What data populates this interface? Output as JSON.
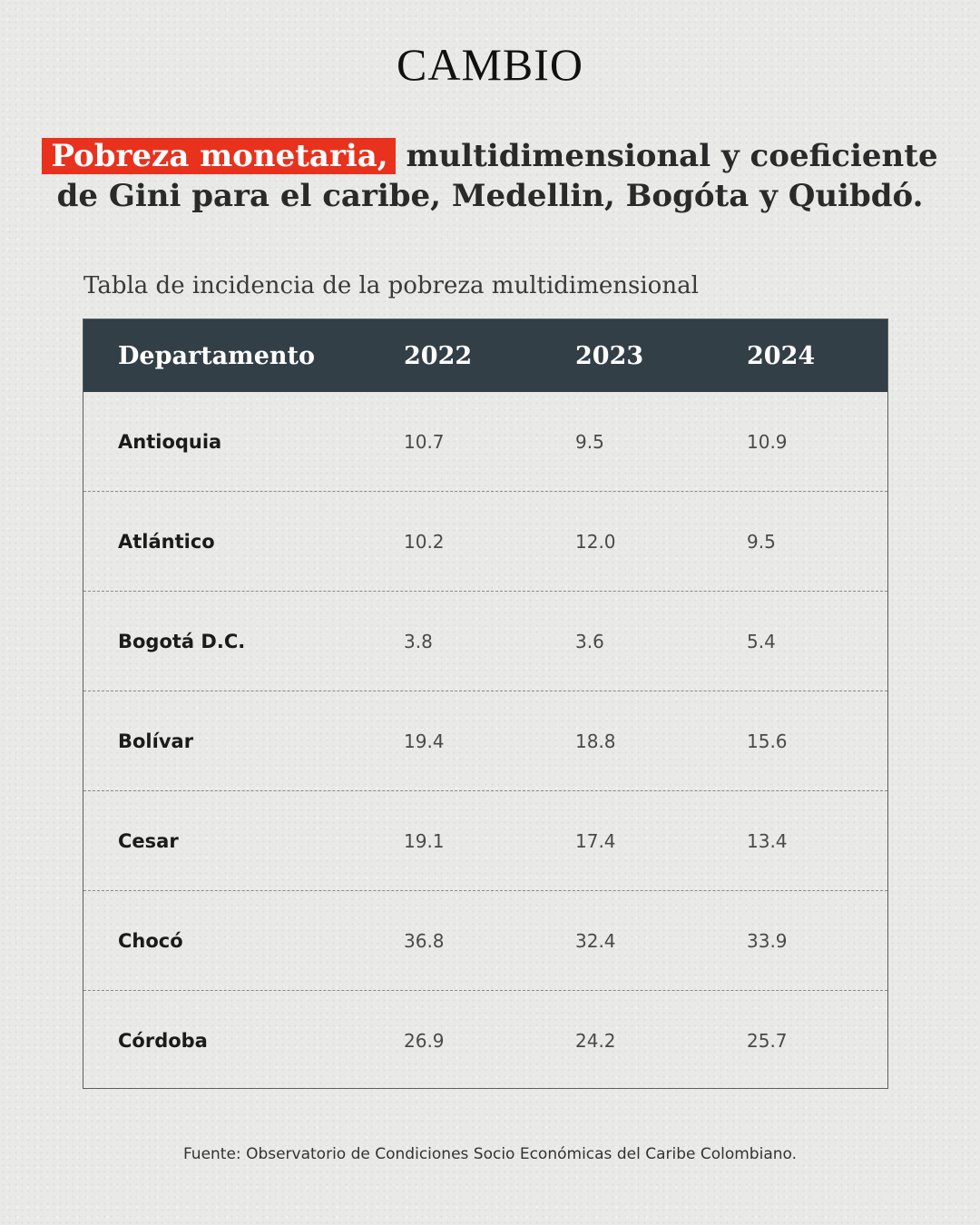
{
  "brand": {
    "logo": "CAMBIO"
  },
  "headline": {
    "highlight": "Pobreza monetaria,",
    "rest_line1": " multidimensional y coeficiente",
    "line2": "de Gini para el caribe, Medellin, Bogóta y Quibdó."
  },
  "subtitle": "Tabla de incidencia de la pobreza multidimensional",
  "table": {
    "headers": [
      "Departamento",
      "2022",
      "2023",
      "2024"
    ],
    "rows": [
      {
        "name": "Antioquia",
        "v2022": "10.7",
        "v2023": "9.5",
        "v2024": "10.9"
      },
      {
        "name": "Atlántico",
        "v2022": "10.2",
        "v2023": "12.0",
        "v2024": "9.5"
      },
      {
        "name": "Bogotá D.C.",
        "v2022": "3.8",
        "v2023": "3.6",
        "v2024": "5.4"
      },
      {
        "name": "Bolívar",
        "v2022": "19.4",
        "v2023": "18.8",
        "v2024": "15.6"
      },
      {
        "name": "Cesar",
        "v2022": "19.1",
        "v2023": "17.4",
        "v2024": "13.4"
      },
      {
        "name": "Chocó",
        "v2022": "36.8",
        "v2023": "32.4",
        "v2024": "33.9"
      },
      {
        "name": "Córdoba",
        "v2022": "26.9",
        "v2023": "24.2",
        "v2024": "25.7"
      }
    ]
  },
  "source": "Fuente: Observatorio de Condiciones Socio Económicas del Caribe Colombiano."
}
